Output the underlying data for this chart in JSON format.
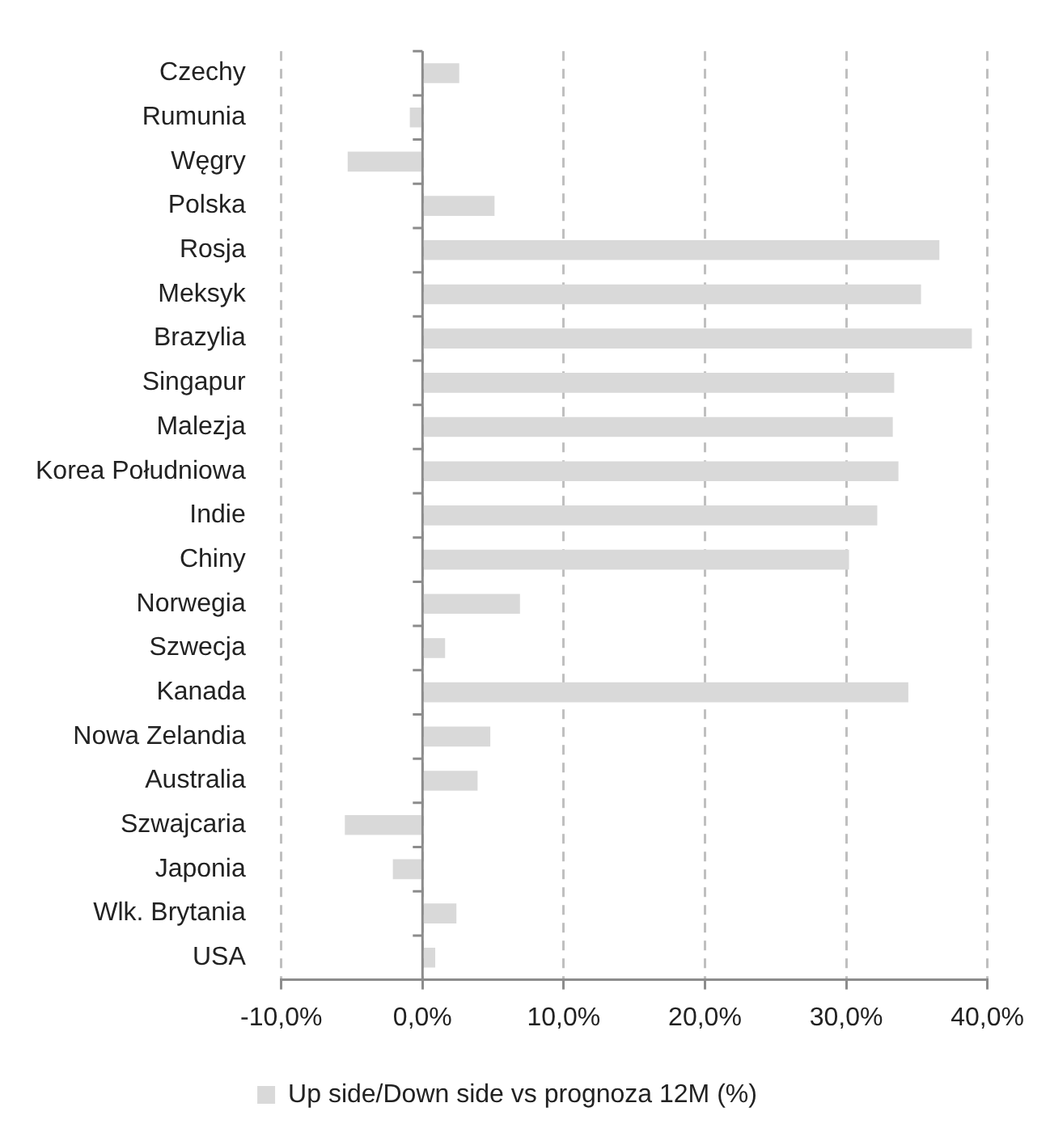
{
  "chart_data": {
    "type": "bar",
    "orientation": "horizontal",
    "categories": [
      "Czechy",
      "Rumunia",
      "Węgry",
      "Polska",
      "Rosja",
      "Meksyk",
      "Brazylia",
      "Singapur",
      "Malezja",
      "Korea Południowa",
      "Indie",
      "Chiny",
      "Norwegia",
      "Szwecja",
      "Kanada",
      "Nowa Zelandia",
      "Australia",
      "Szwajcaria",
      "Japonia",
      "Wlk. Brytania",
      "USA"
    ],
    "series": [
      {
        "name": "Up side/Down side vs prognoza 12M (%)",
        "color": "#d9d9d9",
        "values": [
          2.6,
          -0.9,
          -5.3,
          5.1,
          36.6,
          35.3,
          38.9,
          33.4,
          33.3,
          33.7,
          32.2,
          30.2,
          6.9,
          1.6,
          34.4,
          4.8,
          3.9,
          -5.5,
          -2.1,
          2.4,
          0.9
        ]
      }
    ],
    "xlim": [
      -10,
      40
    ],
    "xticks": [
      {
        "value": -10,
        "label": "-10,0%"
      },
      {
        "value": 0,
        "label": "0,0%"
      },
      {
        "value": 10,
        "label": "10,0%"
      },
      {
        "value": 20,
        "label": "20,0%"
      },
      {
        "value": 30,
        "label": "30,0%"
      },
      {
        "value": 40,
        "label": "40,0%"
      }
    ],
    "grid": "x",
    "legend": "bottom"
  }
}
